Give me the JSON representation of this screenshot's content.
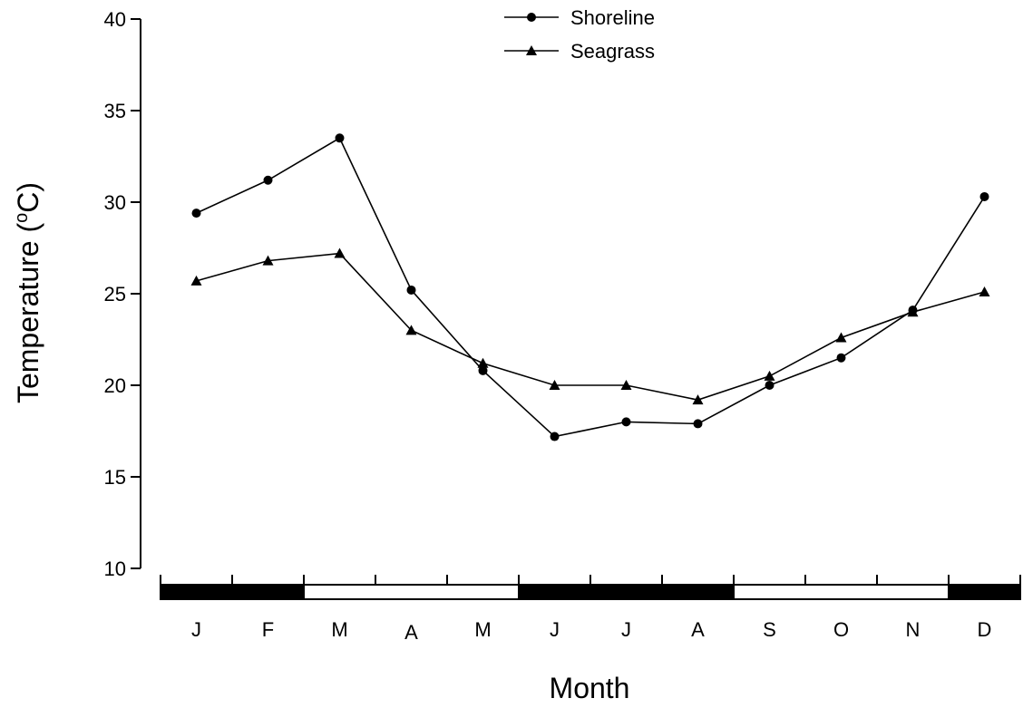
{
  "chart_data": {
    "type": "line",
    "title": "",
    "xlabel": "Month",
    "ylabel": "Temperature (°C)",
    "ylabel_parts": {
      "main": "Temperature (",
      "sup": "o",
      "unit": "C)"
    },
    "categories": [
      "J",
      "F",
      "M",
      "A",
      "M",
      "J",
      "J",
      "A",
      "S",
      "O",
      "N",
      "D"
    ],
    "ylim": [
      10,
      40
    ],
    "yticks": [
      10,
      15,
      20,
      25,
      30,
      35,
      40
    ],
    "grid": false,
    "legend": "top-center",
    "series": [
      {
        "name": "Shoreline",
        "marker": "circle",
        "values": [
          29.4,
          31.2,
          33.5,
          25.2,
          20.8,
          17.2,
          18.0,
          17.9,
          20.0,
          21.5,
          24.1,
          30.3
        ]
      },
      {
        "name": "Seagrass",
        "marker": "triangle",
        "values": [
          25.7,
          26.8,
          27.2,
          23.0,
          21.2,
          20.0,
          20.0,
          19.2,
          20.5,
          22.6,
          24.0,
          25.1
        ]
      }
    ],
    "season_bar": [
      {
        "from": 0,
        "to": 2,
        "fill": "#000000"
      },
      {
        "from": 2,
        "to": 5,
        "fill": "#ffffff"
      },
      {
        "from": 5,
        "to": 8,
        "fill": "#000000"
      },
      {
        "from": 8,
        "to": 11,
        "fill": "#ffffff"
      },
      {
        "from": 11,
        "to": 12,
        "fill": "#000000"
      }
    ]
  }
}
